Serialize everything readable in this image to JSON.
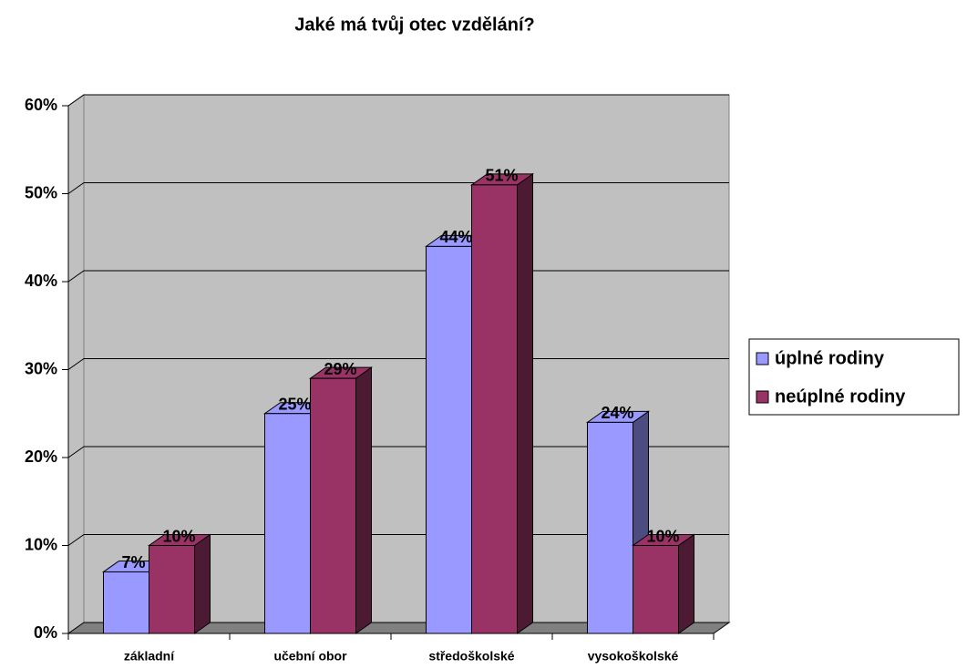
{
  "chart_data": {
    "type": "bar3d",
    "title": "Jaké má tvůj otec vzdělání?",
    "categories": [
      "základní",
      "učební obor",
      "středoškolské",
      "vysokoškolské"
    ],
    "series": [
      {
        "name": "úplné rodiny",
        "color": "#9999ff",
        "values": [
          7,
          25,
          44,
          24
        ],
        "value_labels": [
          "7%",
          "25%",
          "44%",
          "24%"
        ]
      },
      {
        "name": "neúplné rodiny",
        "color": "#993366",
        "values": [
          10,
          29,
          51,
          10
        ],
        "value_labels": [
          "10%",
          "29%",
          "51%",
          "10%"
        ]
      }
    ],
    "ylim": [
      0,
      60
    ],
    "yticks": [
      {
        "value": 0,
        "label": "0%"
      },
      {
        "value": 10,
        "label": "10%"
      },
      {
        "value": 20,
        "label": "20%"
      },
      {
        "value": 30,
        "label": "30%"
      },
      {
        "value": 40,
        "label": "40%"
      },
      {
        "value": 50,
        "label": "50%"
      },
      {
        "value": 60,
        "label": "60%"
      }
    ],
    "grid": true,
    "legend": "right"
  }
}
